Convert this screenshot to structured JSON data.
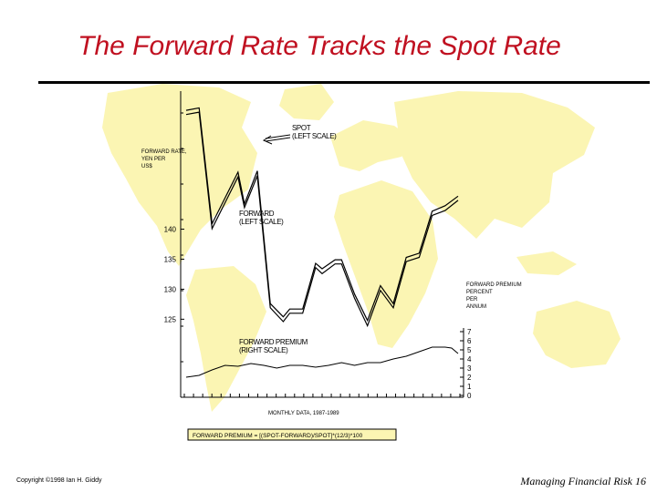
{
  "slide": {
    "title": "The Forward Rate Tracks the Spot Rate",
    "copyright": "Copyright ©1998 Ian H. Giddy",
    "footer": "Managing Financial Risk  16"
  },
  "colors": {
    "title": "#c01020",
    "map": "#fbf5b3",
    "line": "#000000"
  },
  "chart_data": {
    "type": "line",
    "left_axis_label": "FORWARD RATE, YEN PER US$",
    "right_axis_label": "FORWARD PREMIUM PERCENT PER ANNUM",
    "xlabel": "MONTHLY DATA, 1987-1989",
    "left_ticks": [
      125,
      130,
      135,
      140
    ],
    "right_ticks": [
      0,
      1,
      2,
      3,
      4,
      5,
      6,
      7
    ],
    "left_ylim": [
      112,
      163
    ],
    "right_ylim": [
      0,
      7
    ],
    "months": 31,
    "series": [
      {
        "name": "SPOT (LEFT SCALE)",
        "values": [
          [
            0,
            159.8
          ],
          [
            2,
            160.2
          ],
          [
            4,
            140.9
          ],
          [
            8,
            149.5
          ],
          [
            9,
            144.2
          ],
          [
            11,
            149.7
          ],
          [
            13,
            127.6
          ],
          [
            15,
            125.4
          ],
          [
            16,
            126.7
          ],
          [
            18,
            126.7
          ],
          [
            20,
            134.3
          ],
          [
            21,
            133.4
          ],
          [
            23,
            134.9
          ],
          [
            24,
            134.9
          ],
          [
            26,
            129.2
          ],
          [
            28,
            124.8
          ],
          [
            30,
            130.6
          ],
          [
            32,
            127.6
          ],
          [
            34,
            135.3
          ],
          [
            36,
            136.0
          ],
          [
            38,
            143.0
          ],
          [
            40,
            143.9
          ],
          [
            42,
            145.5
          ]
        ]
      },
      {
        "name": "FORWARD (LEFT SCALE)",
        "values": [
          [
            0,
            159.1
          ],
          [
            2,
            159.5
          ],
          [
            4,
            140.1
          ],
          [
            8,
            148.7
          ],
          [
            9,
            143.6
          ],
          [
            11,
            148.9
          ],
          [
            13,
            126.9
          ],
          [
            15,
            124.6
          ],
          [
            16,
            126.0
          ],
          [
            18,
            126.0
          ],
          [
            20,
            133.6
          ],
          [
            21,
            132.6
          ],
          [
            23,
            134.2
          ],
          [
            24,
            134.2
          ],
          [
            26,
            128.5
          ],
          [
            28,
            123.9
          ],
          [
            30,
            129.8
          ],
          [
            32,
            126.9
          ],
          [
            34,
            134.6
          ],
          [
            36,
            135.3
          ],
          [
            38,
            142.3
          ],
          [
            40,
            143.1
          ],
          [
            42,
            144.8
          ]
        ]
      },
      {
        "name": "FORWARD PREMIUM (RIGHT SCALE)",
        "values": [
          [
            0,
            2.0
          ],
          [
            2,
            2.2
          ],
          [
            4,
            2.8
          ],
          [
            6,
            3.3
          ],
          [
            8,
            3.2
          ],
          [
            10,
            3.5
          ],
          [
            12,
            3.3
          ],
          [
            14,
            3.0
          ],
          [
            16,
            3.3
          ],
          [
            18,
            3.3
          ],
          [
            20,
            3.1
          ],
          [
            22,
            3.3
          ],
          [
            24,
            3.6
          ],
          [
            26,
            3.3
          ],
          [
            28,
            3.6
          ],
          [
            30,
            3.6
          ],
          [
            32,
            4.0
          ],
          [
            34,
            4.3
          ],
          [
            36,
            4.8
          ],
          [
            38,
            5.3
          ],
          [
            40,
            5.3
          ],
          [
            41,
            5.2
          ],
          [
            42,
            4.6
          ]
        ]
      }
    ],
    "annotations": [
      "SPOT (LEFT SCALE)",
      "FORWARD (LEFT SCALE)",
      "FORWARD PREMIUM (RIGHT SCALE)"
    ],
    "formula": "FORWARD PREMIUM = [(SPOT-FORWARD)/SPOT]*(12/3)*100",
    "grid": false
  }
}
